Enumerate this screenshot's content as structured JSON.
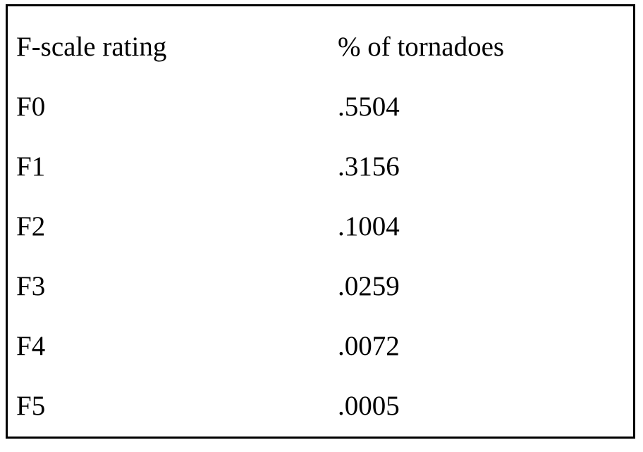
{
  "table": {
    "headers": [
      "F-scale rating",
      "% of tornadoes"
    ],
    "rows": [
      [
        "F0",
        ".5504"
      ],
      [
        "F1",
        ".3156"
      ],
      [
        "F2",
        ".1004"
      ],
      [
        "F3",
        ".0259"
      ],
      [
        "F4",
        ".0072"
      ],
      [
        "F5",
        ".0005"
      ]
    ]
  }
}
